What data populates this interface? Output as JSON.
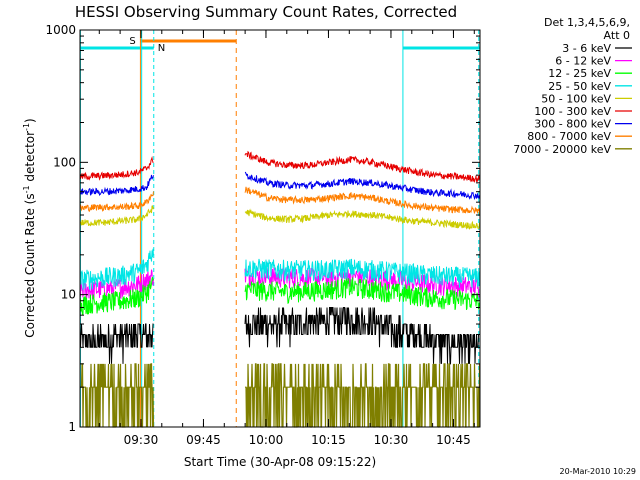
{
  "chart_data": {
    "type": "line",
    "title": "HESSI Observing Summary Count Rates, Corrected",
    "xlabel": "Start Time (30-Apr-08 09:15:22)",
    "ylabel_main": "Corrected Count Rate (s",
    "ylabel_sup1": "-1",
    "ylabel_mid": " detector",
    "ylabel_sup2": "-1",
    "ylabel_end": ")",
    "y_scale": "log",
    "ylim": [
      1,
      1000
    ],
    "xlim_minutes": [
      0,
      96
    ],
    "x_ticks": [
      {
        "t": 14.63,
        "label": "09:30"
      },
      {
        "t": 29.63,
        "label": "09:45"
      },
      {
        "t": 44.63,
        "label": "10:00"
      },
      {
        "t": 59.63,
        "label": "10:15"
      },
      {
        "t": 74.63,
        "label": "10:30"
      },
      {
        "t": 89.63,
        "label": "10:45"
      }
    ],
    "y_ticks": [
      {
        "v": 1,
        "label": "1"
      },
      {
        "v": 10,
        "label": "10"
      },
      {
        "v": 100,
        "label": "100"
      },
      {
        "v": 1000,
        "label": "1000"
      }
    ],
    "legend": {
      "header": [
        "Det 1,3,4,5,6,9,",
        "Att 0"
      ],
      "placement": "right"
    },
    "flags": {
      "S": {
        "label": "S",
        "start": 14.5,
        "end": 37.5,
        "color": "#ff7f00"
      },
      "N": {
        "label": "N",
        "start": 0,
        "end": 17.7,
        "color": "#00e5e5"
      },
      "N2": {
        "start": 77.5,
        "end": 96,
        "color": "#00e5e5"
      }
    },
    "gaps": {
      "start": 17.7,
      "end": 39.5
    },
    "series": [
      {
        "name": "3 - 6 keV",
        "color": "#000000",
        "x": [
          0,
          4,
          8,
          12,
          15,
          17,
          40,
          50,
          60,
          65,
          70,
          75,
          80,
          85,
          90,
          96
        ],
        "y": [
          4.5,
          4.5,
          4.8,
          4.8,
          5.0,
          5.0,
          6.0,
          6.0,
          6.5,
          6.8,
          6.3,
          5.5,
          5.0,
          4.5,
          4.2,
          4.0
        ]
      },
      {
        "name": "6 - 12 keV",
        "color": "#ff00ff",
        "x": [
          0,
          5,
          10,
          14,
          16,
          17.5,
          40,
          50,
          60,
          65,
          70,
          75,
          80,
          85,
          90,
          96
        ],
        "y": [
          11,
          11,
          11.5,
          12,
          13,
          14,
          14,
          13.5,
          13.5,
          14,
          13.5,
          13,
          12.5,
          12,
          11.8,
          11.5
        ]
      },
      {
        "name": "12 - 25 keV",
        "color": "#00ff00",
        "x": [
          0,
          5,
          10,
          14,
          16,
          17.5,
          40,
          50,
          60,
          65,
          70,
          75,
          80,
          85,
          90,
          96
        ],
        "y": [
          8.5,
          8.8,
          9,
          9.5,
          10.5,
          12,
          11,
          10.5,
          11,
          11.5,
          11,
          10.5,
          10,
          9.5,
          9.3,
          9
        ]
      },
      {
        "name": "25 - 50 keV",
        "color": "#00e5e5",
        "x": [
          0,
          5,
          10,
          14,
          16,
          17.5,
          40,
          50,
          60,
          65,
          70,
          75,
          80,
          85,
          90,
          96
        ],
        "y": [
          13,
          13.5,
          14,
          15,
          17,
          22,
          16,
          15.5,
          15.5,
          16,
          15.5,
          15,
          14.5,
          14,
          13.8,
          13.5
        ]
      },
      {
        "name": "50 - 100 keV",
        "color": "#cccc00",
        "x": [
          0,
          5,
          10,
          14,
          16,
          17.5,
          40,
          45,
          50,
          55,
          60,
          65,
          70,
          75,
          80,
          85,
          90,
          96
        ],
        "y": [
          35,
          35,
          36,
          37,
          40,
          45,
          42,
          38,
          37,
          38,
          40,
          41,
          40,
          38,
          36,
          35,
          34,
          33
        ]
      },
      {
        "name": "100 - 300 keV",
        "color": "#e60000",
        "x": [
          0,
          5,
          10,
          14,
          16,
          17.5,
          40,
          45,
          50,
          55,
          60,
          65,
          70,
          75,
          80,
          85,
          90,
          96
        ],
        "y": [
          78,
          79,
          81,
          84,
          90,
          105,
          115,
          100,
          95,
          95,
          100,
          105,
          100,
          92,
          85,
          80,
          78,
          75
        ]
      },
      {
        "name": "300 - 800 keV",
        "color": "#0000ee",
        "x": [
          0,
          5,
          10,
          14,
          16,
          17.5,
          40,
          45,
          50,
          55,
          60,
          65,
          70,
          75,
          80,
          85,
          90,
          96
        ],
        "y": [
          60,
          60,
          61,
          63,
          65,
          80,
          80,
          70,
          67,
          67,
          69,
          72,
          70,
          66,
          62,
          59,
          58,
          56
        ]
      },
      {
        "name": "800 - 7000 keV",
        "color": "#ff7f00",
        "x": [
          0,
          5,
          10,
          14,
          16,
          17.5,
          40,
          45,
          50,
          55,
          60,
          65,
          70,
          75,
          80,
          85,
          90,
          96
        ],
        "y": [
          45,
          46,
          46,
          47,
          50,
          58,
          62,
          54,
          52,
          52,
          54,
          56,
          54,
          50,
          47,
          45,
          44,
          43
        ]
      },
      {
        "name": "7000 - 20000 keV",
        "color": "#7f7f00",
        "x": [
          0,
          10,
          16,
          17.5,
          40,
          50,
          60,
          65,
          70,
          80,
          90,
          96
        ],
        "y": [
          2,
          2,
          2,
          2,
          2,
          2,
          2,
          2.5,
          2,
          2,
          2,
          2
        ]
      }
    ],
    "footer_date": "20-Mar-2010 10:29"
  }
}
